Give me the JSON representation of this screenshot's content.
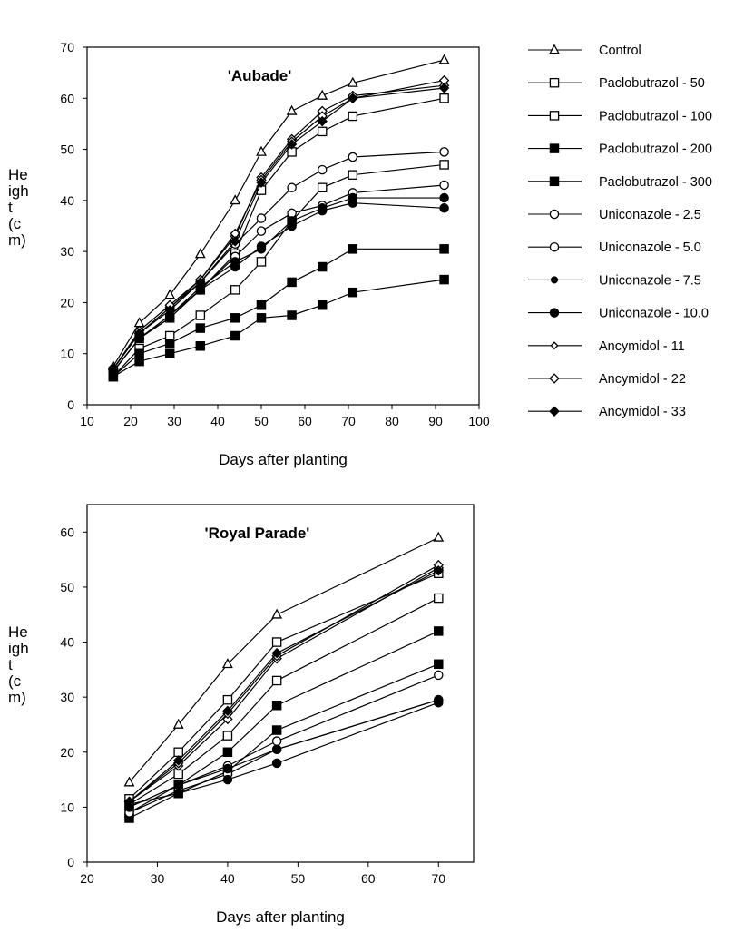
{
  "chart_data": [
    {
      "type": "line",
      "title": "'Aubade'",
      "xlabel": "Days after planting",
      "ylabel": [
        "He",
        "igh",
        "t",
        "(c",
        "m)"
      ],
      "xlim": [
        10,
        100
      ],
      "ylim": [
        0,
        70
      ],
      "xticks": [
        10,
        20,
        30,
        40,
        50,
        60,
        70,
        80,
        90,
        100
      ],
      "yticks": [
        0,
        10,
        20,
        30,
        40,
        50,
        60,
        70
      ],
      "grid": false,
      "x": [
        16,
        22,
        29,
        36,
        44,
        50,
        57,
        64,
        71,
        92
      ],
      "series": [
        {
          "name": "Control",
          "marker": "triangle-open",
          "values": [
            7.5,
            16,
            21.5,
            29.5,
            40,
            49.5,
            57.5,
            60.5,
            63,
            67.5
          ]
        },
        {
          "name": "Paclobutrazol  - 50",
          "marker": "square-open",
          "values": [
            6.5,
            13,
            17,
            22.5,
            29.5,
            42,
            49.5,
            53.5,
            56.5,
            60
          ]
        },
        {
          "name": "Paclobutrazol - 100",
          "marker": "square-open",
          "values": [
            5.5,
            11,
            13.5,
            17.5,
            22.5,
            28,
            36,
            42.5,
            45,
            47
          ]
        },
        {
          "name": "Paclobutrazol - 200",
          "marker": "square-filled",
          "values": [
            5.5,
            10,
            12,
            15,
            17,
            19.5,
            24,
            27,
            30.5,
            30.5
          ]
        },
        {
          "name": "Paclobutrazol - 300",
          "marker": "square-filled",
          "values": [
            5.5,
            8.5,
            10,
            11.5,
            13.5,
            17,
            17.5,
            19.5,
            22,
            24.5
          ]
        },
        {
          "name": "Uniconazole  - 2.5",
          "marker": "circle-open",
          "values": [
            7,
            14,
            19,
            24,
            31.5,
            36.5,
            42.5,
            46,
            48.5,
            49.5
          ]
        },
        {
          "name": "Uniconazole  - 5.0",
          "marker": "circle-open",
          "values": [
            6.5,
            13,
            17.5,
            22.5,
            29,
            34,
            37.5,
            39,
            41.5,
            43
          ]
        },
        {
          "name": "Uniconazole  - 7.5",
          "marker": "circle-filled",
          "values": [
            6.5,
            13,
            17,
            22.5,
            27,
            31,
            35,
            38,
            39.5,
            38.5
          ]
        },
        {
          "name": "Uniconazole  - 10.0",
          "marker": "circle-filled",
          "values": [
            6.5,
            13,
            17.5,
            23,
            28,
            30.5,
            36,
            38.5,
            40.5,
            40.5
          ]
        },
        {
          "name": "Ancymidol - 11",
          "marker": "diamond-open",
          "values": [
            7,
            14,
            19,
            24.5,
            33,
            44.5,
            52,
            57.5,
            60.5,
            62.5
          ]
        },
        {
          "name": "Ancymidol - 22",
          "marker": "diamond-open",
          "values": [
            7,
            14.5,
            19.5,
            24.5,
            33.5,
            44,
            51.5,
            56.5,
            60,
            63.5
          ]
        },
        {
          "name": "Ancymidol - 33",
          "marker": "diamond-filled",
          "values": [
            7,
            14,
            18.5,
            24,
            32,
            43.5,
            51,
            55.5,
            60,
            62
          ]
        }
      ]
    },
    {
      "type": "line",
      "title": "'Royal Parade'",
      "xlabel": "Days after planting",
      "ylabel": [
        "He",
        "igh",
        "t",
        "(c",
        "m)"
      ],
      "xlim": [
        20,
        75
      ],
      "ylim": [
        0,
        65
      ],
      "xticks": [
        20,
        30,
        40,
        50,
        60,
        70
      ],
      "yticks": [
        0,
        10,
        20,
        30,
        40,
        50,
        60
      ],
      "grid": false,
      "x": [
        26,
        33,
        40,
        47,
        70
      ],
      "series": [
        {
          "name": "Control",
          "marker": "triangle-open",
          "values": [
            14.5,
            25,
            36,
            45,
            59
          ]
        },
        {
          "name": "Paclobutrazol  - 50",
          "marker": "square-open",
          "values": [
            11.5,
            20,
            29.5,
            40,
            52.5
          ]
        },
        {
          "name": "Paclobutrazol - 100",
          "marker": "square-open",
          "values": [
            10.5,
            16,
            23,
            33,
            48
          ]
        },
        {
          "name": "Paclobutrazol - 200",
          "marker": "square-filled",
          "values": [
            9,
            14,
            20,
            28.5,
            42
          ]
        },
        {
          "name": "Paclobutrazol - 300",
          "marker": "square-filled",
          "values": [
            8,
            12.5,
            16.5,
            24,
            36
          ]
        },
        {
          "name": "Uniconazole  - 2.5",
          "marker": "circle-open",
          "values": [
            10,
            14,
            17.5,
            22,
            34
          ]
        },
        {
          "name": "Uniconazole  - 5.0",
          "marker": "circle-open",
          "values": [
            9,
            13,
            16,
            20.5,
            29.5
          ]
        },
        {
          "name": "Uniconazole  - 7.5",
          "marker": "circle-filled",
          "values": [
            10,
            14,
            17,
            20.5,
            29.5
          ]
        },
        {
          "name": "Uniconazole  - 10.0",
          "marker": "circle-filled",
          "values": [
            10.5,
            12.5,
            15,
            18,
            29
          ]
        },
        {
          "name": "Ancymidol - 11",
          "marker": "diamond-open",
          "values": [
            11,
            17.5,
            26,
            37,
            53.5
          ]
        },
        {
          "name": "Ancymidol - 22",
          "marker": "diamond-open",
          "values": [
            11,
            18,
            27,
            37.5,
            54
          ]
        },
        {
          "name": "Ancymidol - 33",
          "marker": "diamond-filled",
          "values": [
            11,
            18.5,
            27.5,
            38,
            53
          ]
        }
      ]
    }
  ],
  "legend": [
    {
      "label": "Control",
      "marker": "triangle-open"
    },
    {
      "label": "Paclobutrazol  - 50",
      "marker": "square-open"
    },
    {
      "label": "Paclobutrazol - 100",
      "marker": "square-open"
    },
    {
      "label": "Paclobutrazol - 200",
      "marker": "square-filled"
    },
    {
      "label": "Paclobutrazol - 300",
      "marker": "square-filled"
    },
    {
      "label": "Uniconazole  - 2.5",
      "marker": "circle-open"
    },
    {
      "label": "Uniconazole  - 5.0",
      "marker": "circle-open"
    },
    {
      "label": "Uniconazole  - 7.5",
      "marker": "circle-filled-small"
    },
    {
      "label": "Uniconazole  - 10.0",
      "marker": "circle-filled"
    },
    {
      "label": "Ancymidol - 11",
      "marker": "diamond-open-small"
    },
    {
      "label": "Ancymidol - 22",
      "marker": "diamond-open"
    },
    {
      "label": "Ancymidol - 33",
      "marker": "diamond-filled"
    }
  ],
  "colors": {
    "ink": "#000000",
    "background": "#ffffff"
  }
}
